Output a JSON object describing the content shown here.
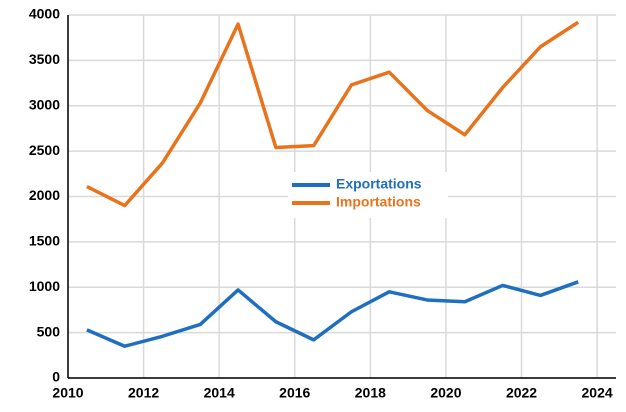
{
  "chart_data": {
    "type": "line",
    "x": [
      2010.5,
      2011.5,
      2012.5,
      2013.5,
      2014.5,
      2015.5,
      2016.5,
      2017.5,
      2018.5,
      2019.5,
      2020.5,
      2021.5,
      2022.5,
      2023.5
    ],
    "series": [
      {
        "name": "Exportations",
        "color": "#1f6fc0",
        "values": [
          530,
          350,
          460,
          590,
          970,
          620,
          420,
          730,
          950,
          860,
          840,
          1020,
          910,
          1060
        ]
      },
      {
        "name": "Importations",
        "color": "#e8731c",
        "values": [
          2110,
          1900,
          2370,
          3030,
          3900,
          2540,
          2560,
          3230,
          3370,
          2950,
          2680,
          3200,
          3650,
          3920
        ]
      }
    ],
    "xlim": [
      2010,
      2024.5
    ],
    "xticks": [
      2010,
      2012,
      2014,
      2016,
      2018,
      2020,
      2022,
      2024
    ],
    "ylim": [
      0,
      4000
    ],
    "yticks": [
      0,
      500,
      1000,
      1500,
      2000,
      2500,
      3000,
      3500,
      4000
    ],
    "grid": true,
    "legend": "center"
  }
}
